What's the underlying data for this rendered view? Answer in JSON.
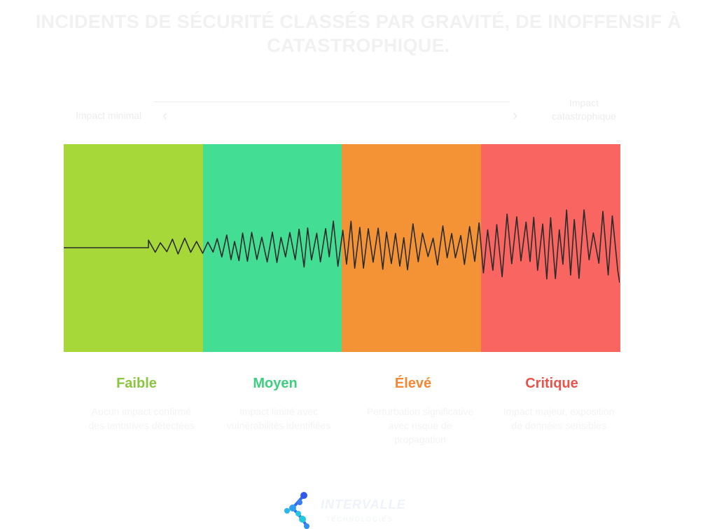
{
  "title": "INCIDENTS DE SÉCURITÉ CLASSÉS PAR GRAVITÉ, DE INOFFENSIF À CATASTROPHIQUE.",
  "scale": {
    "min_label": "Impact minimal",
    "max_label": "Impact catastrophique",
    "left_icon": "chevron-left-icon",
    "right_icon": "chevron-right-icon"
  },
  "levels": [
    {
      "name": "Faible",
      "color": "#a6d83a",
      "label_color": "#8bc53f",
      "description": "Aucun impact confirmé des tentatives détectées"
    },
    {
      "name": "Moyen",
      "color": "#44dd94",
      "label_color": "#3ccf80",
      "description": "Impact limité avec vulnérabilités identifiées"
    },
    {
      "name": "Élevé",
      "color": "#f49335",
      "label_color": "#f58733",
      "description": "Perturbation significative avec risque de propagation"
    },
    {
      "name": "Critique",
      "color": "#f96561",
      "label_color": "#ea524c",
      "description": "Impact majeur, exposition de données sensibles"
    }
  ],
  "wave_color": "#2b2b2b",
  "logo": {
    "name": "INTERVALLE",
    "tagline": "TECHNOLOGIES",
    "icon": "intervalle-logo-icon"
  }
}
